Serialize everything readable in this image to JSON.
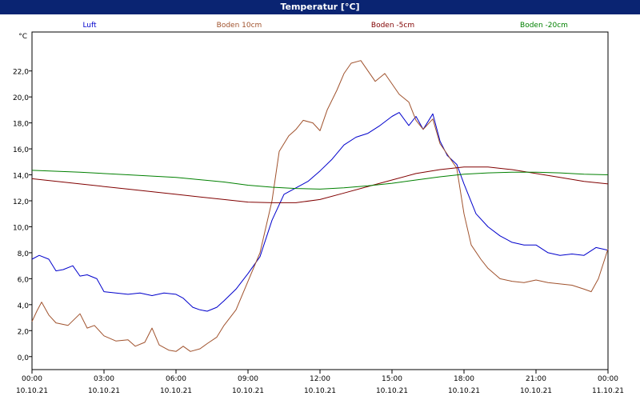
{
  "window": {
    "title": "Temperatur [°C]"
  },
  "chart_data": {
    "type": "line",
    "ylabel": "°C",
    "ylim": [
      -1,
      25
    ],
    "xlim": [
      0,
      24
    ],
    "grid": true,
    "legend_placement": "top",
    "yticks": [
      0,
      2,
      4,
      6,
      8,
      10,
      12,
      14,
      16,
      18,
      20,
      22
    ],
    "ytick_labels": [
      "0,0",
      "2,0",
      "4,0",
      "6,0",
      "8,0",
      "10,0",
      "12,0",
      "14,0",
      "16,0",
      "18,0",
      "20,0",
      "22,0"
    ],
    "xticks": [
      0,
      3,
      6,
      9,
      12,
      15,
      18,
      21,
      24
    ],
    "xtick_labels": [
      [
        "00:00",
        "10.10.21"
      ],
      [
        "03:00",
        "10.10.21"
      ],
      [
        "06:00",
        "10.10.21"
      ],
      [
        "09:00",
        "10.10.21"
      ],
      [
        "12:00",
        "10.10.21"
      ],
      [
        "15:00",
        "10.10.21"
      ],
      [
        "18:00",
        "10.10.21"
      ],
      [
        "21:00",
        "10.10.21"
      ],
      [
        "00:00",
        "11.10.21"
      ]
    ],
    "series": [
      {
        "name": "Luft",
        "color": "#0000cc",
        "x": [
          0,
          0.3,
          0.7,
          1.0,
          1.3,
          1.7,
          2.0,
          2.3,
          2.7,
          3.0,
          3.5,
          4.0,
          4.5,
          5.0,
          5.5,
          6.0,
          6.3,
          6.7,
          7.0,
          7.3,
          7.7,
          8.0,
          8.5,
          9.0,
          9.5,
          10.0,
          10.5,
          11.0,
          11.5,
          12.0,
          12.5,
          13.0,
          13.5,
          14.0,
          14.5,
          15.0,
          15.3,
          15.7,
          16.0,
          16.3,
          16.7,
          17.0,
          17.3,
          17.7,
          18.0,
          18.5,
          19.0,
          19.5,
          20.0,
          20.5,
          21.0,
          21.5,
          22.0,
          22.5,
          23.0,
          23.5,
          24.0
        ],
        "y": [
          7.5,
          7.8,
          7.5,
          6.6,
          6.7,
          7.0,
          6.2,
          6.3,
          6.0,
          5.0,
          4.9,
          4.8,
          4.9,
          4.7,
          4.9,
          4.8,
          4.5,
          3.8,
          3.6,
          3.5,
          3.8,
          4.3,
          5.2,
          6.4,
          7.7,
          10.5,
          12.5,
          13.0,
          13.5,
          14.3,
          15.2,
          16.3,
          16.9,
          17.2,
          17.8,
          18.5,
          18.8,
          17.8,
          18.5,
          17.5,
          18.7,
          16.6,
          15.5,
          14.8,
          13.3,
          11.0,
          10.0,
          9.3,
          8.8,
          8.6,
          8.6,
          8.0,
          7.8,
          7.9,
          7.8,
          8.4,
          8.2
        ]
      },
      {
        "name": "Boden 10cm",
        "color": "#a0522d",
        "x": [
          0,
          0.2,
          0.4,
          0.7,
          1.0,
          1.5,
          2.0,
          2.3,
          2.6,
          3.0,
          3.5,
          4.0,
          4.3,
          4.7,
          5.0,
          5.3,
          5.7,
          6.0,
          6.3,
          6.6,
          7.0,
          7.3,
          7.7,
          8.0,
          8.5,
          9.0,
          9.5,
          10.0,
          10.3,
          10.7,
          11.0,
          11.3,
          11.7,
          12.0,
          12.3,
          12.7,
          13.0,
          13.3,
          13.7,
          14.0,
          14.3,
          14.7,
          15.0,
          15.3,
          15.7,
          16.0,
          16.3,
          16.7,
          17.0,
          17.3,
          17.7,
          18.0,
          18.3,
          18.7,
          19.0,
          19.5,
          20.0,
          20.5,
          21.0,
          21.5,
          22.0,
          22.5,
          23.0,
          23.3,
          23.6,
          24.0
        ],
        "y": [
          2.7,
          3.5,
          4.2,
          3.2,
          2.6,
          2.4,
          3.3,
          2.2,
          2.4,
          1.6,
          1.2,
          1.3,
          0.8,
          1.1,
          2.2,
          0.9,
          0.5,
          0.4,
          0.8,
          0.4,
          0.6,
          1.0,
          1.5,
          2.4,
          3.6,
          5.8,
          8.0,
          12.0,
          15.8,
          17.0,
          17.5,
          18.2,
          18.0,
          17.4,
          19.0,
          20.5,
          21.8,
          22.6,
          22.8,
          22.0,
          21.2,
          21.8,
          21.0,
          20.2,
          19.6,
          18.2,
          17.5,
          18.3,
          16.4,
          15.6,
          14.5,
          11.0,
          8.6,
          7.5,
          6.8,
          6.0,
          5.8,
          5.7,
          5.9,
          5.7,
          5.6,
          5.5,
          5.2,
          5.0,
          6.0,
          8.3
        ]
      },
      {
        "name": "Boden -5cm",
        "color": "#800000",
        "x": [
          0,
          2,
          4,
          6,
          8,
          9,
          10,
          11,
          12,
          13,
          14,
          15,
          16,
          17,
          18,
          19,
          20,
          21,
          22,
          23,
          24
        ],
        "y": [
          13.7,
          13.3,
          12.9,
          12.5,
          12.1,
          11.9,
          11.85,
          11.85,
          12.1,
          12.6,
          13.1,
          13.6,
          14.1,
          14.4,
          14.6,
          14.6,
          14.4,
          14.1,
          13.8,
          13.5,
          13.3
        ]
      },
      {
        "name": "Boden -20cm",
        "color": "#008000",
        "x": [
          0,
          2,
          4,
          6,
          8,
          9,
          10,
          11,
          12,
          13,
          14,
          15,
          16,
          17,
          18,
          19,
          20,
          21,
          22,
          23,
          24
        ],
        "y": [
          14.35,
          14.2,
          14.0,
          13.8,
          13.45,
          13.2,
          13.05,
          12.95,
          12.9,
          13.0,
          13.15,
          13.35,
          13.6,
          13.85,
          14.05,
          14.15,
          14.2,
          14.2,
          14.15,
          14.05,
          14.0
        ]
      }
    ]
  }
}
